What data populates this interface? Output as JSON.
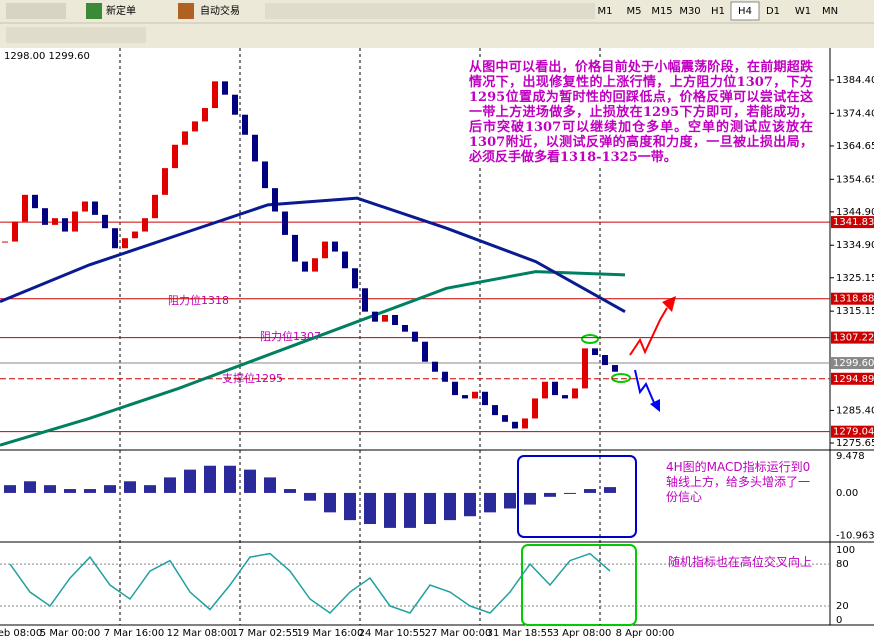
{
  "toolbar": {
    "new_order": "新定单",
    "auto_trade": "自动交易",
    "timeframes": [
      "M1",
      "M5",
      "M15",
      "M30",
      "H1",
      "H4",
      "D1",
      "W1",
      "MN"
    ],
    "active_timeframe": "H4"
  },
  "chart": {
    "header": "1298.00 1299.60",
    "ylim": [
      1393.99,
      1273.55
    ],
    "yticks": [
      {
        "value": 1384.4,
        "label": "1384.40"
      },
      {
        "value": 1374.4,
        "label": "1374.40"
      },
      {
        "value": 1364.65,
        "label": "1364.65"
      },
      {
        "value": 1354.65,
        "label": "1354.65"
      },
      {
        "value": 1344.9,
        "label": "1344.90"
      },
      {
        "value": 1334.9,
        "label": "1334.90"
      },
      {
        "value": 1325.15,
        "label": "1325.15"
      },
      {
        "value": 1315.15,
        "label": "1315.15"
      },
      {
        "value": 1285.4,
        "label": "1285.40"
      },
      {
        "value": 1275.65,
        "label": "1275.65"
      }
    ],
    "levels": [
      {
        "value": 1341.83,
        "label": "1341.83",
        "color": "#cc0000"
      },
      {
        "value": 1318.88,
        "label": "1318.88",
        "color": "#cc0000"
      },
      {
        "value": 1307.22,
        "label": "1307.22",
        "color": "#cc0000"
      },
      {
        "value": 1299.6,
        "label": "1299.60",
        "color": "#888888"
      },
      {
        "value": 1294.89,
        "label": "1294.89",
        "color": "#cc0000"
      },
      {
        "value": 1279.04,
        "label": "1279.04",
        "color": "#cc0000"
      }
    ],
    "closes": [
      1336,
      1342,
      1350,
      1346,
      1341,
      1343,
      1339,
      1345,
      1348,
      1344,
      1340,
      1334,
      1337,
      1339,
      1343,
      1350,
      1358,
      1365,
      1369,
      1372,
      1376,
      1384,
      1380,
      1374,
      1368,
      1360,
      1352,
      1345,
      1338,
      1330,
      1327,
      1331,
      1336,
      1333,
      1328,
      1322,
      1315,
      1312,
      1314,
      1311,
      1309,
      1306,
      1300,
      1297,
      1294,
      1290,
      1289,
      1291,
      1287,
      1284,
      1282,
      1280,
      1283,
      1289,
      1294,
      1290,
      1289,
      1292,
      1304,
      1302,
      1299,
      1297
    ],
    "ma_slow": [
      1318,
      1329,
      1338,
      1347,
      1349,
      1340,
      1330,
      1315
    ],
    "ma_long": [
      1275,
      1283,
      1292,
      1302,
      1312,
      1322,
      1327,
      1326
    ],
    "note": "从图中可以看出，价格目前处于小幅震荡阶段，在前期超跌情况下，出现修复性的上涨行情，上方阻力位1307，下方1295位置成为暂时性的回踩低点，价格反弹可以尝试在这一带上方进场做多，止损放在1295下方即可，若能成功，后市突破1307可以继续加仓多单。空单的测试应该放在1307附近，以测试反弹的高度和力度，一旦被止损出局，必须反手做多看1318-1325一带。",
    "resistance_1318": "阻力位1318",
    "resistance_1307": "阻力位1307",
    "support_1295": "支撑位1295"
  },
  "macd": {
    "ylim": [
      11.05,
      -12.63
    ],
    "yticks": [
      {
        "value": 9.478,
        "label": "9.478"
      },
      {
        "value": 0,
        "label": "0.00"
      },
      {
        "value": -10.963,
        "label": "-10.963"
      }
    ],
    "values": [
      2,
      3,
      2,
      1,
      1,
      2,
      3,
      2,
      4,
      6,
      7,
      7,
      6,
      4,
      1,
      -2,
      -5,
      -7,
      -8,
      -9,
      -9,
      -8,
      -7,
      -6,
      -5,
      -4,
      -3,
      -1,
      0,
      1,
      1.5
    ],
    "note": "4H图的MACD指标运行到0轴线上方，给多头增添了一份信心"
  },
  "stoch": {
    "ylim": [
      111.6,
      -7.2
    ],
    "yticks": [
      100,
      80,
      20,
      0
    ],
    "values": [
      80,
      40,
      20,
      60,
      90,
      50,
      30,
      70,
      85,
      40,
      15,
      50,
      90,
      95,
      70,
      30,
      10,
      40,
      60,
      20,
      10,
      50,
      40,
      20,
      10,
      40,
      80,
      50,
      85,
      95,
      70
    ],
    "note": "随机指标也在高位交叉向上"
  },
  "time_labels": [
    "eb 08:00",
    "5 Mar 00:00",
    "7 Mar 16:00",
    "12 Mar 08:00",
    "17 Mar 02:55",
    "19 Mar 16:00",
    "24 Mar 10:55",
    "27 Mar 00:00",
    "31 Mar 18:55",
    "3 Apr 08:00",
    "8 Apr 00:00"
  ]
}
